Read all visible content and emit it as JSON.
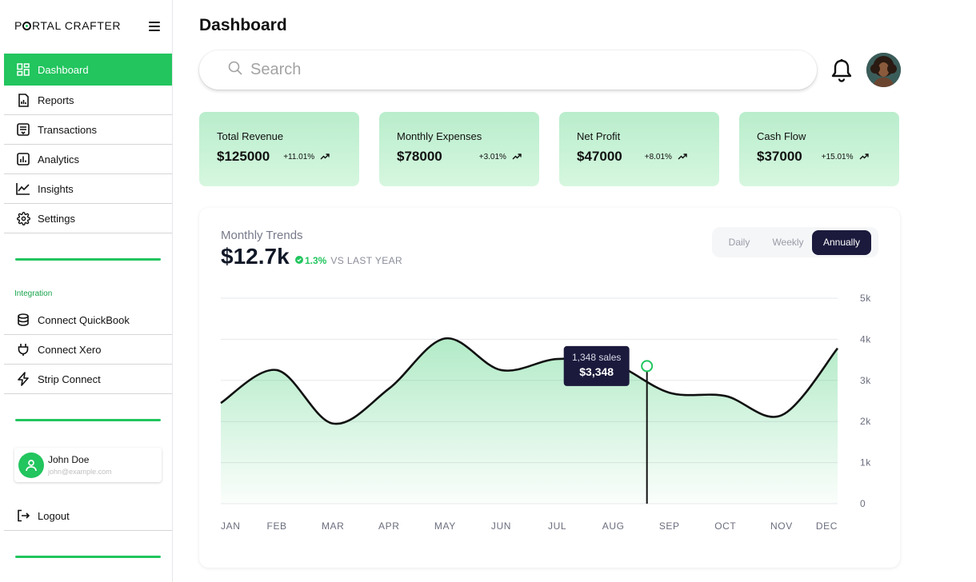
{
  "brand": {
    "name_prefix": "P",
    "name_suffix": "RTAL CRAFTER"
  },
  "sidebar": {
    "items": [
      {
        "label": "Dashboard",
        "icon": "dashboard-icon"
      },
      {
        "label": "Reports",
        "icon": "report-icon"
      },
      {
        "label": "Transactions",
        "icon": "transactions-icon"
      },
      {
        "label": "Analytics",
        "icon": "analytics-icon"
      },
      {
        "label": "Insights",
        "icon": "insights-icon"
      },
      {
        "label": "Settings",
        "icon": "gear-icon"
      }
    ],
    "integration_label": "Integration",
    "integrations": [
      {
        "label": "Connect QuickBook",
        "icon": "database-icon"
      },
      {
        "label": "Connect Xero",
        "icon": "plug-icon"
      },
      {
        "label": "Strip Connect",
        "icon": "lightning-icon"
      }
    ],
    "user": {
      "name": "John Doe",
      "email": "john@example.com"
    },
    "logout_label": "Logout"
  },
  "header": {
    "title": "Dashboard",
    "search_placeholder": "Search"
  },
  "stats": [
    {
      "label": "Total Revenue",
      "value": "$125000",
      "change": "+11.01%"
    },
    {
      "label": "Monthly Expenses",
      "value": "$78000",
      "change": "+3.01%"
    },
    {
      "label": "Net Profit",
      "value": "$47000",
      "change": "+8.01%"
    },
    {
      "label": "Cash Flow",
      "value": "$37000",
      "change": "+15.01%"
    }
  ],
  "trends": {
    "title": "Monthly Trends",
    "value": "$12.7k",
    "change": "1.3%",
    "vs_label": "VS LAST YEAR",
    "periods": [
      "Daily",
      "Weekly",
      "Annually"
    ],
    "active_period": "Annually",
    "tooltip": {
      "line1": "1,348 sales",
      "line2": "$3,348"
    }
  },
  "colors": {
    "accent": "#22c55e",
    "dark": "#1b1a3d",
    "card_green": "#c7f2d6"
  },
  "chart_data": {
    "type": "area",
    "x": [
      "JAN",
      "FEB",
      "MAR",
      "APR",
      "MAY",
      "JUN",
      "JUL",
      "AUG",
      "SEP",
      "OCT",
      "NOV",
      "DEC"
    ],
    "y_ticks": [
      "5k",
      "4k",
      "3k",
      "2k",
      "1k",
      "0"
    ],
    "ylim": [
      0,
      5000
    ],
    "series": [
      {
        "values": [
          2450,
          3250,
          1950,
          2800,
          4020,
          3250,
          3520,
          3400,
          2700,
          2620,
          2150,
          3780
        ]
      }
    ],
    "highlight": {
      "x_index": 7.6,
      "y": 3348
    },
    "grid": true,
    "y_axis_position": "right"
  }
}
